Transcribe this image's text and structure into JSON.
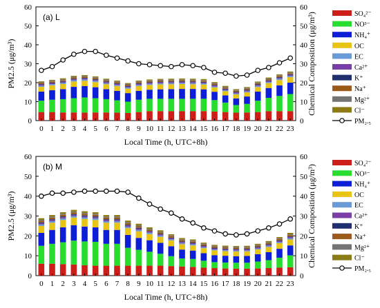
{
  "chart_data": [
    {
      "type": "bar",
      "panel_label": "(a) L",
      "ylabel": "PM2.5 (μg/m³)",
      "y2label": "Chemical Composition (μg/m³)",
      "xlabel": "Local Time (h, UTC+8h)",
      "categories": [
        "0",
        "1",
        "2",
        "3",
        "4",
        "5",
        "6",
        "7",
        "8",
        "9",
        "10",
        "11",
        "12",
        "13",
        "14",
        "15",
        "16",
        "17",
        "18",
        "19",
        "20",
        "21",
        "22",
        "23"
      ],
      "ylim": [
        0,
        60
      ],
      "y2lim": [
        0,
        60
      ],
      "yticks": [
        "0",
        "10",
        "20",
        "30",
        "40",
        "50",
        "60"
      ],
      "stacked_series": [
        {
          "name": "SO₄²⁻",
          "color": "#cc1f1a",
          "values": [
            4.5,
            4.5,
            4.3,
            4.3,
            4.2,
            4.3,
            4.3,
            4.2,
            4.0,
            4.5,
            5.0,
            5.0,
            5.0,
            5.0,
            5.0,
            5.0,
            4.8,
            4.5,
            4.2,
            4.3,
            4.5,
            5.0,
            5.0,
            5.0
          ]
        },
        {
          "name": "NO³⁻",
          "color": "#29dd2e",
          "values": [
            6.0,
            6.5,
            7.0,
            7.5,
            8.0,
            7.5,
            7.0,
            6.5,
            6.0,
            6.5,
            6.5,
            6.5,
            6.5,
            6.5,
            6.5,
            6.5,
            6.0,
            5.0,
            4.0,
            4.5,
            6.0,
            7.0,
            8.0,
            9.0
          ]
        },
        {
          "name": "NH₄⁺",
          "color": "#0e1ed6",
          "values": [
            4.8,
            5.0,
            5.3,
            6.0,
            6.0,
            5.8,
            5.3,
            5.0,
            4.5,
            4.7,
            4.8,
            5.0,
            5.1,
            5.2,
            5.2,
            5.0,
            4.4,
            3.8,
            3.5,
            3.9,
            4.8,
            5.2,
            5.6,
            6.0
          ]
        },
        {
          "name": "OC",
          "color": "#e8c414",
          "values": [
            2.5,
            2.6,
            2.7,
            2.8,
            2.8,
            2.7,
            2.6,
            2.5,
            2.4,
            2.5,
            2.5,
            2.6,
            2.6,
            2.6,
            2.5,
            2.5,
            2.3,
            2.2,
            2.1,
            2.2,
            2.4,
            2.6,
            2.8,
            2.9
          ]
        },
        {
          "name": "EC",
          "color": "#6b9bd6",
          "values": [
            0.6,
            0.6,
            0.7,
            0.7,
            0.7,
            0.7,
            0.6,
            0.6,
            0.6,
            0.6,
            0.6,
            0.6,
            0.6,
            0.6,
            0.6,
            0.6,
            0.5,
            0.5,
            0.5,
            0.5,
            0.6,
            0.6,
            0.7,
            0.7
          ]
        },
        {
          "name": "Ca²⁺",
          "color": "#7a3fa6",
          "values": [
            0.5,
            0.5,
            0.5,
            0.5,
            0.5,
            0.5,
            0.5,
            0.5,
            0.5,
            0.5,
            0.5,
            0.5,
            0.5,
            0.5,
            0.5,
            0.5,
            0.5,
            0.5,
            0.5,
            0.5,
            0.5,
            0.5,
            0.5,
            0.5
          ]
        },
        {
          "name": "K⁺",
          "color": "#1f2f6e",
          "values": [
            0.3,
            0.3,
            0.3,
            0.3,
            0.3,
            0.3,
            0.3,
            0.3,
            0.3,
            0.3,
            0.3,
            0.3,
            0.3,
            0.3,
            0.3,
            0.3,
            0.3,
            0.3,
            0.3,
            0.3,
            0.3,
            0.3,
            0.3,
            0.3
          ]
        },
        {
          "name": "Na⁺",
          "color": "#9c5a1a",
          "values": [
            0.6,
            0.6,
            0.6,
            0.6,
            0.6,
            0.6,
            0.6,
            0.6,
            0.6,
            0.6,
            0.6,
            0.6,
            0.6,
            0.6,
            0.6,
            0.6,
            0.6,
            0.6,
            0.6,
            0.6,
            0.6,
            0.6,
            0.6,
            0.6
          ]
        },
        {
          "name": "Mg²⁺",
          "color": "#747474",
          "values": [
            0.4,
            0.4,
            0.4,
            0.4,
            0.4,
            0.4,
            0.4,
            0.4,
            0.4,
            0.4,
            0.4,
            0.4,
            0.4,
            0.4,
            0.4,
            0.4,
            0.4,
            0.4,
            0.4,
            0.4,
            0.4,
            0.4,
            0.4,
            0.4
          ]
        },
        {
          "name": "Cl⁻",
          "color": "#8c7a14",
          "values": [
            0.5,
            0.5,
            0.5,
            0.5,
            0.5,
            0.5,
            0.5,
            0.5,
            0.5,
            0.5,
            0.5,
            0.5,
            0.5,
            0.5,
            0.5,
            0.5,
            0.5,
            0.5,
            0.5,
            0.5,
            0.5,
            0.5,
            0.5,
            0.5
          ]
        }
      ],
      "line_series": {
        "name": "PM₂.₅",
        "values": [
          26.5,
          28.5,
          32,
          35,
          36.5,
          36.5,
          34.5,
          33,
          31.5,
          30,
          29.5,
          29,
          28.5,
          29.5,
          29,
          28,
          25.5,
          25,
          23.5,
          24,
          26.5,
          28,
          30.5,
          33
        ]
      }
    },
    {
      "type": "bar",
      "panel_label": "(b) M",
      "ylabel": "PM2.5 (μg/m³)",
      "y2label": "Chemical Composition (μg/m³)",
      "xlabel": "Local Time (h, UTC+8h)",
      "categories": [
        "0",
        "1",
        "2",
        "3",
        "4",
        "5",
        "6",
        "7",
        "8",
        "9",
        "10",
        "11",
        "12",
        "13",
        "14",
        "15",
        "16",
        "17",
        "18",
        "19",
        "20",
        "21",
        "22",
        "23"
      ],
      "ylim": [
        0,
        60
      ],
      "y2lim": [
        0,
        60
      ],
      "yticks": [
        "0",
        "10",
        "20",
        "30",
        "40",
        "50",
        "60"
      ],
      "stacked_series": [
        {
          "name": "SO₄²⁻",
          "color": "#cc1f1a",
          "values": [
            6.0,
            6.0,
            5.8,
            5.6,
            5.2,
            5.0,
            5.0,
            5.0,
            5.0,
            5.0,
            5.0,
            5.0,
            4.8,
            4.6,
            4.4,
            4.0,
            3.8,
            3.6,
            3.5,
            3.5,
            3.6,
            3.8,
            4.0,
            4.2
          ]
        },
        {
          "name": "NO³⁻",
          "color": "#29dd2e",
          "values": [
            9.0,
            10.0,
            11.0,
            12.0,
            12.0,
            12.0,
            11.0,
            11.0,
            9.0,
            8.0,
            7.0,
            6.0,
            5.0,
            4.0,
            4.0,
            3.5,
            3.0,
            3.0,
            3.0,
            3.0,
            3.5,
            4.0,
            5.0,
            6.0
          ]
        },
        {
          "name": "NH₄⁺",
          "color": "#0e1ed6",
          "values": [
            6.5,
            7.0,
            7.5,
            7.8,
            7.5,
            7.3,
            7.0,
            7.0,
            6.5,
            6.0,
            5.8,
            5.5,
            5.0,
            4.5,
            4.2,
            3.8,
            3.5,
            3.4,
            3.3,
            3.4,
            3.7,
            4.0,
            4.5,
            5.0
          ]
        },
        {
          "name": "OC",
          "color": "#e8c414",
          "values": [
            3.5,
            3.6,
            3.7,
            3.8,
            3.8,
            3.7,
            3.6,
            3.6,
            3.4,
            3.3,
            3.1,
            3.0,
            2.9,
            2.7,
            2.6,
            2.5,
            2.4,
            2.3,
            2.3,
            2.3,
            2.4,
            2.6,
            2.8,
            3.0
          ]
        },
        {
          "name": "EC",
          "color": "#6b9bd6",
          "values": [
            0.8,
            0.8,
            0.8,
            0.8,
            0.8,
            0.8,
            0.8,
            0.8,
            0.7,
            0.7,
            0.7,
            0.7,
            0.6,
            0.6,
            0.6,
            0.5,
            0.5,
            0.5,
            0.5,
            0.5,
            0.5,
            0.6,
            0.6,
            0.7
          ]
        },
        {
          "name": "Ca²⁺",
          "color": "#7a3fa6",
          "values": [
            0.6,
            0.6,
            0.6,
            0.6,
            0.6,
            0.6,
            0.6,
            0.6,
            0.6,
            0.6,
            0.5,
            0.5,
            0.5,
            0.5,
            0.5,
            0.5,
            0.5,
            0.5,
            0.5,
            0.5,
            0.5,
            0.5,
            0.5,
            0.5
          ]
        },
        {
          "name": "K⁺",
          "color": "#1f2f6e",
          "values": [
            0.4,
            0.4,
            0.4,
            0.4,
            0.4,
            0.4,
            0.4,
            0.4,
            0.4,
            0.4,
            0.3,
            0.3,
            0.3,
            0.3,
            0.3,
            0.3,
            0.3,
            0.3,
            0.3,
            0.3,
            0.3,
            0.3,
            0.3,
            0.3
          ]
        },
        {
          "name": "Na⁺",
          "color": "#9c5a1a",
          "values": [
            0.8,
            0.8,
            0.8,
            0.8,
            0.8,
            0.8,
            0.8,
            0.8,
            0.8,
            0.8,
            0.7,
            0.7,
            0.7,
            0.7,
            0.6,
            0.6,
            0.6,
            0.6,
            0.6,
            0.6,
            0.6,
            0.6,
            0.7,
            0.7
          ]
        },
        {
          "name": "Mg²⁺",
          "color": "#747474",
          "values": [
            0.5,
            0.5,
            0.5,
            0.5,
            0.5,
            0.5,
            0.5,
            0.5,
            0.5,
            0.5,
            0.5,
            0.4,
            0.4,
            0.4,
            0.4,
            0.4,
            0.4,
            0.4,
            0.4,
            0.4,
            0.4,
            0.4,
            0.4,
            0.4
          ]
        },
        {
          "name": "Cl⁻",
          "color": "#8c7a14",
          "values": [
            0.8,
            0.8,
            0.8,
            0.8,
            0.8,
            0.8,
            0.8,
            0.8,
            0.8,
            0.8,
            0.7,
            0.7,
            0.6,
            0.6,
            0.6,
            0.5,
            0.5,
            0.5,
            0.5,
            0.5,
            0.5,
            0.6,
            0.6,
            0.7
          ]
        }
      ],
      "line_series": {
        "name": "PM₂.₅",
        "values": [
          40,
          41.5,
          41.5,
          42,
          42.5,
          42.5,
          42.5,
          42.5,
          42,
          39,
          36,
          33.5,
          31.5,
          28.5,
          26.5,
          24,
          22.5,
          21,
          20.5,
          21,
          22.5,
          24,
          26,
          28.5
        ]
      }
    }
  ]
}
